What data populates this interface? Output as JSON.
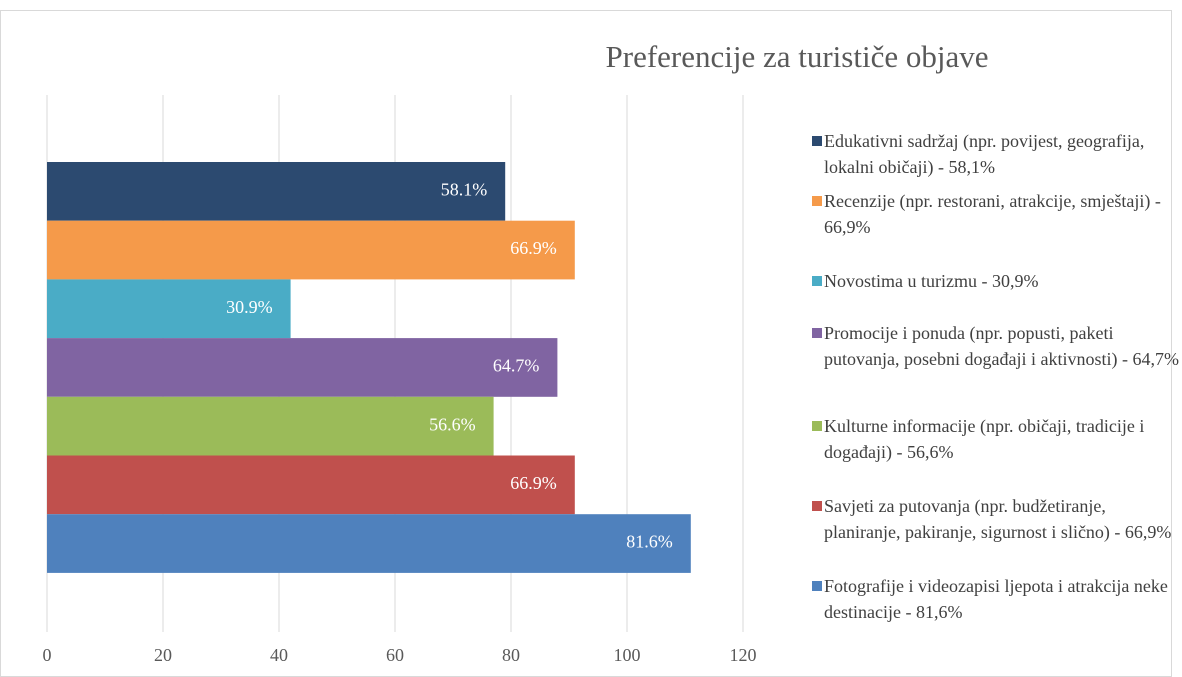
{
  "chart_data": {
    "type": "bar",
    "orientation": "horizontal",
    "title": "Preferencije za turističe objave",
    "categories": [
      "Edukativni sadržaj (npr. povijest, geografija, lokalni običaji) - 58,1%",
      "Recenzije (npr. restorani, atrakcije, smještaji) - 66,9%",
      "Novostima u turizmu - 30,9%",
      "Promocije i ponuda (npr. popusti, paketi putovanja, posebni događaji i aktivnosti) - 64,7%",
      "Kulturne informacije (npr. običaji, tradicije i događaji) - 56,6%",
      "Savjeti za putovanja (npr. budžetiranje, planiranje, pakiranje, sigurnost i slično) - 66,9%",
      "Fotografije i videozapisi ljepota i atrakcija neke destinacije - 81,6%"
    ],
    "values": [
      79,
      91,
      42,
      88,
      77,
      91,
      111
    ],
    "value_labels": [
      "58.1%",
      "66.9%",
      "30.9%",
      "64.7%",
      "56.6%",
      "66.9%",
      "81.6%"
    ],
    "colors": [
      "#2c4a70",
      "#f59a4a",
      "#4aacc6",
      "#8064a2",
      "#9bbb59",
      "#c0504d",
      "#4f81bd"
    ],
    "xlim": [
      0,
      120
    ],
    "xticks": [
      0,
      20,
      40,
      60,
      80,
      100,
      120
    ],
    "grid": true,
    "legend": "right"
  }
}
